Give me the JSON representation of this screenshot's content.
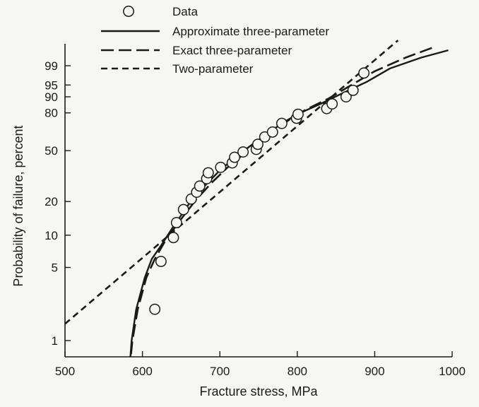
{
  "chart_data": {
    "type": "scatter",
    "x_axis": {
      "label": "Fracture stress, MPa",
      "range": [
        500,
        1000
      ],
      "ticks": [
        500,
        600,
        700,
        800,
        900,
        1000
      ],
      "tick_labels": [
        "500",
        "600",
        "700",
        "800",
        "900",
        "1000"
      ]
    },
    "y_axis": {
      "label": "Probability of failure, percent",
      "scale": "weibull",
      "ticks": [
        1,
        5,
        10,
        20,
        50,
        80,
        90,
        95,
        99
      ],
      "tick_labels": [
        "1",
        "5",
        "10",
        "20",
        "50",
        "80",
        "90",
        "95",
        "99"
      ]
    },
    "legend": {
      "placement": "top-left",
      "entries": [
        {
          "label": "Data",
          "style": "circle"
        },
        {
          "label": "Approximate three-parameter",
          "style": "solid"
        },
        {
          "label": "Exact three-parameter",
          "style": "long-dash"
        },
        {
          "label": "Two-parameter",
          "style": "short-dash"
        }
      ]
    },
    "series": [
      {
        "name": "Data",
        "style": "circle",
        "points": [
          [
            616,
            2
          ],
          [
            624,
            5.7
          ],
          [
            640,
            9.5
          ],
          [
            644,
            13
          ],
          [
            653,
            17
          ],
          [
            663,
            21
          ],
          [
            670,
            24
          ],
          [
            674,
            27
          ],
          [
            683,
            31
          ],
          [
            685,
            34.5
          ],
          [
            701,
            38
          ],
          [
            716,
            41
          ],
          [
            719,
            45
          ],
          [
            730,
            49
          ],
          [
            747,
            51
          ],
          [
            749,
            55
          ],
          [
            758,
            61
          ],
          [
            768,
            65
          ],
          [
            780,
            72
          ],
          [
            799,
            76
          ],
          [
            801,
            79
          ],
          [
            838,
            83
          ],
          [
            845,
            86
          ],
          [
            863,
            90
          ],
          [
            872,
            93
          ],
          [
            886,
            98
          ]
        ]
      },
      {
        "name": "Approximate three-parameter",
        "style": "solid",
        "points": [
          [
            583,
            0.5
          ],
          [
            586,
            1
          ],
          [
            592,
            2
          ],
          [
            603,
            4
          ],
          [
            612,
            6
          ],
          [
            624,
            8
          ],
          [
            640,
            12
          ],
          [
            660,
            19
          ],
          [
            680,
            27
          ],
          [
            700,
            36
          ],
          [
            720,
            45
          ],
          [
            740,
            54
          ],
          [
            760,
            63
          ],
          [
            780,
            72
          ],
          [
            800,
            79
          ],
          [
            830,
            86
          ],
          [
            860,
            92
          ],
          [
            890,
            96
          ],
          [
            920,
            98.7
          ],
          [
            960,
            99.6
          ],
          [
            995,
            99.85
          ]
        ]
      },
      {
        "name": "Exact three-parameter",
        "style": "long-dash",
        "points": [
          [
            583,
            0.5
          ],
          [
            587,
            1
          ],
          [
            594,
            2
          ],
          [
            605,
            4
          ],
          [
            616,
            6
          ],
          [
            630,
            9
          ],
          [
            650,
            14
          ],
          [
            670,
            21
          ],
          [
            690,
            29
          ],
          [
            710,
            38
          ],
          [
            730,
            47
          ],
          [
            750,
            57
          ],
          [
            770,
            66
          ],
          [
            790,
            75
          ],
          [
            810,
            82
          ],
          [
            840,
            89
          ],
          [
            870,
            95
          ],
          [
            900,
            98.3
          ],
          [
            940,
            99.6
          ],
          [
            975,
            99.9
          ]
        ]
      },
      {
        "name": "Two-parameter",
        "style": "short-dash",
        "points": [
          [
            500,
            1.45
          ],
          [
            930,
            99.97
          ]
        ]
      }
    ]
  }
}
